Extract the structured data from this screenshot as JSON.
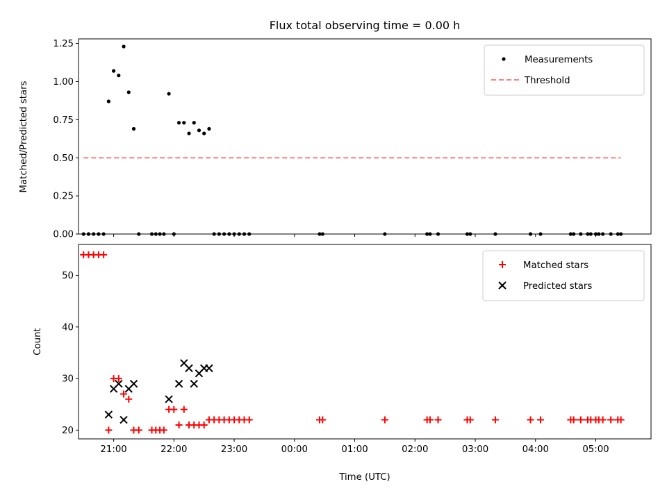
{
  "chart_data": [
    {
      "type": "scatter",
      "title": "Flux total observing time = 0.00 h",
      "xlabel": "",
      "ylabel": "Matched/Predicted stars",
      "ylim": [
        0,
        1.28
      ],
      "yticks": [
        "0.00",
        "0.25",
        "0.50",
        "0.75",
        "1.00",
        "1.25"
      ],
      "xlim": [
        "20:25",
        "05:55"
      ],
      "legend_position": "upper-right",
      "series": [
        {
          "name": "Measurements",
          "type": "scatter",
          "color": "#000000",
          "marker": "dot",
          "points": [
            {
              "x": "20:30",
              "y": 0
            },
            {
              "x": "20:35",
              "y": 0
            },
            {
              "x": "20:40",
              "y": 0
            },
            {
              "x": "20:45",
              "y": 0
            },
            {
              "x": "20:50",
              "y": 0
            },
            {
              "x": "20:55",
              "y": 0.87
            },
            {
              "x": "21:00",
              "y": 1.07
            },
            {
              "x": "21:05",
              "y": 1.04
            },
            {
              "x": "21:10",
              "y": 1.23
            },
            {
              "x": "21:15",
              "y": 0.93
            },
            {
              "x": "21:20",
              "y": 0.69
            },
            {
              "x": "21:25",
              "y": 0
            },
            {
              "x": "21:38",
              "y": 0
            },
            {
              "x": "21:42",
              "y": 0
            },
            {
              "x": "21:46",
              "y": 0
            },
            {
              "x": "21:50",
              "y": 0
            },
            {
              "x": "21:55",
              "y": 0.92
            },
            {
              "x": "22:00",
              "y": 0
            },
            {
              "x": "22:05",
              "y": 0.73
            },
            {
              "x": "22:10",
              "y": 0.73
            },
            {
              "x": "22:15",
              "y": 0.66
            },
            {
              "x": "22:20",
              "y": 0.73
            },
            {
              "x": "22:25",
              "y": 0.68
            },
            {
              "x": "22:30",
              "y": 0.66
            },
            {
              "x": "22:35",
              "y": 0.69
            },
            {
              "x": "22:40",
              "y": 0
            },
            {
              "x": "22:45",
              "y": 0
            },
            {
              "x": "22:50",
              "y": 0
            },
            {
              "x": "22:55",
              "y": 0
            },
            {
              "x": "23:00",
              "y": 0
            },
            {
              "x": "23:05",
              "y": 0
            },
            {
              "x": "23:10",
              "y": 0
            },
            {
              "x": "23:15",
              "y": 0
            },
            {
              "x": "00:25",
              "y": 0
            },
            {
              "x": "00:28",
              "y": 0
            },
            {
              "x": "01:30",
              "y": 0
            },
            {
              "x": "02:12",
              "y": 0
            },
            {
              "x": "02:15",
              "y": 0
            },
            {
              "x": "02:23",
              "y": 0
            },
            {
              "x": "02:52",
              "y": 0
            },
            {
              "x": "02:55",
              "y": 0
            },
            {
              "x": "03:20",
              "y": 0
            },
            {
              "x": "03:55",
              "y": 0
            },
            {
              "x": "04:05",
              "y": 0
            },
            {
              "x": "04:35",
              "y": 0
            },
            {
              "x": "04:38",
              "y": 0
            },
            {
              "x": "04:45",
              "y": 0
            },
            {
              "x": "04:52",
              "y": 0
            },
            {
              "x": "04:55",
              "y": 0
            },
            {
              "x": "05:00",
              "y": 0
            },
            {
              "x": "05:03",
              "y": 0
            },
            {
              "x": "05:07",
              "y": 0
            },
            {
              "x": "05:15",
              "y": 0
            },
            {
              "x": "05:22",
              "y": 0
            },
            {
              "x": "05:25",
              "y": 0
            }
          ]
        },
        {
          "name": "Threshold",
          "type": "line",
          "style": "dashed",
          "color": "#ff7f7f",
          "points": [
            {
              "x": "20:30",
              "y": 0.5
            },
            {
              "x": "05:25",
              "y": 0.5
            }
          ]
        }
      ]
    },
    {
      "type": "scatter",
      "title": "",
      "xlabel": "Time (UTC)",
      "ylabel": "Count",
      "ylim": [
        18.3,
        56
      ],
      "yticks": [
        "20",
        "30",
        "40",
        "50"
      ],
      "xlim": [
        "20:25",
        "05:55"
      ],
      "xticks": [
        "21:00",
        "22:00",
        "23:00",
        "00:00",
        "01:00",
        "02:00",
        "03:00",
        "04:00",
        "05:00"
      ],
      "legend_position": "upper-right",
      "series": [
        {
          "name": "Matched stars",
          "type": "scatter",
          "color": "#ff0000",
          "marker": "plus",
          "points": [
            {
              "x": "20:30",
              "y": 54
            },
            {
              "x": "20:35",
              "y": 54
            },
            {
              "x": "20:40",
              "y": 54
            },
            {
              "x": "20:45",
              "y": 54
            },
            {
              "x": "20:50",
              "y": 54
            },
            {
              "x": "20:55",
              "y": 20
            },
            {
              "x": "21:00",
              "y": 30
            },
            {
              "x": "21:05",
              "y": 30
            },
            {
              "x": "21:10",
              "y": 27
            },
            {
              "x": "21:15",
              "y": 26
            },
            {
              "x": "21:20",
              "y": 20
            },
            {
              "x": "21:25",
              "y": 20
            },
            {
              "x": "21:38",
              "y": 20
            },
            {
              "x": "21:42",
              "y": 20
            },
            {
              "x": "21:46",
              "y": 20
            },
            {
              "x": "21:50",
              "y": 20
            },
            {
              "x": "21:55",
              "y": 24
            },
            {
              "x": "22:00",
              "y": 24
            },
            {
              "x": "22:05",
              "y": 21
            },
            {
              "x": "22:10",
              "y": 24
            },
            {
              "x": "22:15",
              "y": 21
            },
            {
              "x": "22:20",
              "y": 21
            },
            {
              "x": "22:25",
              "y": 21
            },
            {
              "x": "22:30",
              "y": 21
            },
            {
              "x": "22:35",
              "y": 22
            },
            {
              "x": "22:40",
              "y": 22
            },
            {
              "x": "22:45",
              "y": 22
            },
            {
              "x": "22:50",
              "y": 22
            },
            {
              "x": "22:55",
              "y": 22
            },
            {
              "x": "23:00",
              "y": 22
            },
            {
              "x": "23:05",
              "y": 22
            },
            {
              "x": "23:10",
              "y": 22
            },
            {
              "x": "23:15",
              "y": 22
            },
            {
              "x": "00:25",
              "y": 22
            },
            {
              "x": "00:28",
              "y": 22
            },
            {
              "x": "01:30",
              "y": 22
            },
            {
              "x": "02:12",
              "y": 22
            },
            {
              "x": "02:15",
              "y": 22
            },
            {
              "x": "02:23",
              "y": 22
            },
            {
              "x": "02:52",
              "y": 22
            },
            {
              "x": "02:55",
              "y": 22
            },
            {
              "x": "03:20",
              "y": 22
            },
            {
              "x": "03:55",
              "y": 22
            },
            {
              "x": "04:05",
              "y": 22
            },
            {
              "x": "04:35",
              "y": 22
            },
            {
              "x": "04:38",
              "y": 22
            },
            {
              "x": "04:45",
              "y": 22
            },
            {
              "x": "04:52",
              "y": 22
            },
            {
              "x": "04:55",
              "y": 22
            },
            {
              "x": "05:00",
              "y": 22
            },
            {
              "x": "05:03",
              "y": 22
            },
            {
              "x": "05:07",
              "y": 22
            },
            {
              "x": "05:15",
              "y": 22
            },
            {
              "x": "05:22",
              "y": 22
            },
            {
              "x": "05:25",
              "y": 22
            }
          ]
        },
        {
          "name": "Predicted stars",
          "type": "scatter",
          "color": "#000000",
          "marker": "x",
          "points": [
            {
              "x": "20:55",
              "y": 23
            },
            {
              "x": "21:00",
              "y": 28
            },
            {
              "x": "21:05",
              "y": 29
            },
            {
              "x": "21:10",
              "y": 22
            },
            {
              "x": "21:15",
              "y": 28
            },
            {
              "x": "21:20",
              "y": 29
            },
            {
              "x": "21:55",
              "y": 26
            },
            {
              "x": "22:05",
              "y": 29
            },
            {
              "x": "22:10",
              "y": 33
            },
            {
              "x": "22:15",
              "y": 32
            },
            {
              "x": "22:20",
              "y": 29
            },
            {
              "x": "22:25",
              "y": 31
            },
            {
              "x": "22:30",
              "y": 32
            },
            {
              "x": "22:35",
              "y": 32
            }
          ]
        }
      ]
    }
  ]
}
